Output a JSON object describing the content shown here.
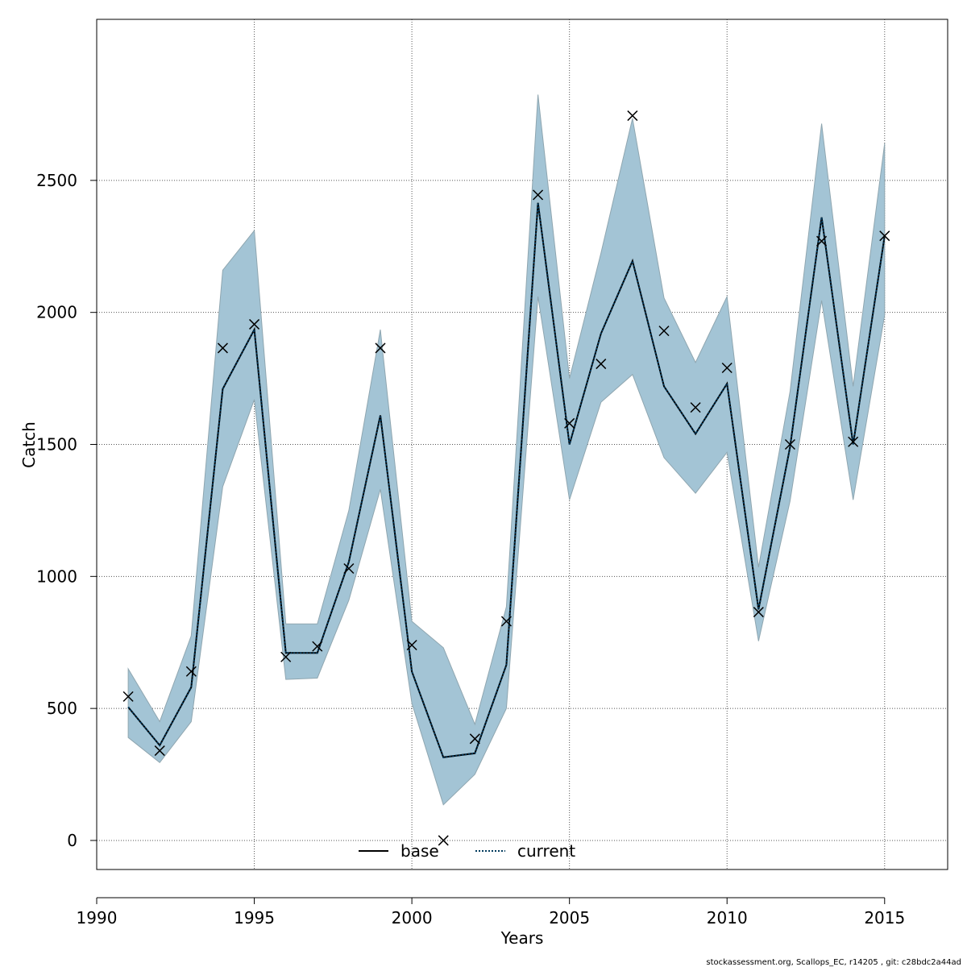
{
  "chart_data": {
    "type": "line",
    "xlabel": "Years",
    "ylabel": "Catch",
    "xlim": [
      1990,
      2017
    ],
    "ylim": [
      -110,
      3110
    ],
    "x_ticks": [
      1990,
      1995,
      2000,
      2005,
      2010,
      2015
    ],
    "y_ticks": [
      0,
      500,
      1000,
      1500,
      2000,
      2500
    ],
    "grid": true,
    "legend_placement": "bottom-center",
    "x": [
      1991,
      1992,
      1993,
      1994,
      1995,
      1996,
      1997,
      1998,
      1999,
      2000,
      2001,
      2002,
      2003,
      2004,
      2005,
      2006,
      2007,
      2008,
      2009,
      2010,
      2011,
      2012,
      2013,
      2014,
      2015
    ],
    "observed": [
      545,
      340,
      640,
      1865,
      1955,
      695,
      735,
      1030,
      1865,
      740,
      0,
      385,
      830,
      2445,
      1580,
      1805,
      2745,
      1930,
      1640,
      1790,
      865,
      1500,
      2270,
      1510,
      2290
    ],
    "band_upper": [
      650,
      450,
      775,
      2160,
      2310,
      820,
      820,
      1250,
      1935,
      830,
      730,
      440,
      885,
      2825,
      1750,
      2225,
      2735,
      2055,
      1810,
      2060,
      1035,
      1700,
      2715,
      1720,
      2640
    ],
    "band_lower": [
      390,
      295,
      450,
      1340,
      1670,
      610,
      615,
      910,
      1330,
      520,
      135,
      250,
      500,
      2060,
      1290,
      1660,
      1765,
      1450,
      1315,
      1470,
      755,
      1285,
      2045,
      1290,
      1990
    ],
    "series": [
      {
        "name": "base",
        "style": "solid",
        "color": "#000000",
        "values": [
          505,
          360,
          580,
          1710,
          1935,
          710,
          710,
          1055,
          1610,
          640,
          315,
          330,
          665,
          2415,
          1500,
          1920,
          2195,
          1720,
          1540,
          1730,
          875,
          1490,
          2360,
          1500,
          2290
        ]
      },
      {
        "name": "current",
        "style": "dotted",
        "color": "#00395C",
        "values": [
          505,
          360,
          580,
          1710,
          1935,
          710,
          710,
          1055,
          1610,
          640,
          315,
          330,
          665,
          2415,
          1500,
          1920,
          2195,
          1720,
          1540,
          1730,
          875,
          1490,
          2360,
          1500,
          2290
        ]
      }
    ],
    "band_color": "#A3C4D5",
    "band_edge_color": "#8FA6B0",
    "marker": "x"
  },
  "legend": {
    "base": "base",
    "current": "current"
  },
  "footer": "stockassessment.org, Scallops_EC, r14205 , git: c28bdc2a44ad"
}
